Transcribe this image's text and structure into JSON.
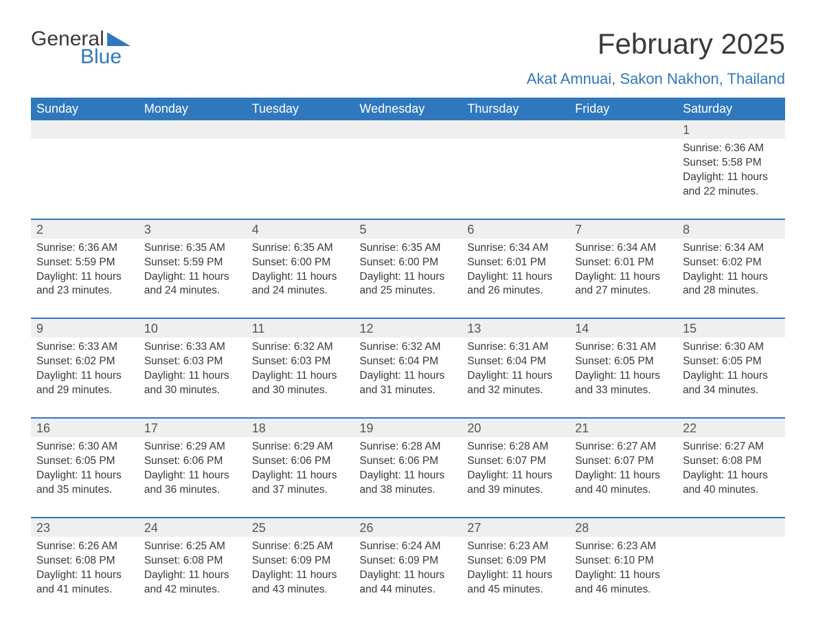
{
  "logo": {
    "text_general": "General",
    "text_blue": "Blue",
    "flag_color": "#2f78bd"
  },
  "title": "February 2025",
  "subtitle": "Akat Amnuai, Sakon Nakhon, Thailand",
  "colors": {
    "header_bg": "#2f78bd",
    "header_text": "#ffffff",
    "page_bg": "#ffffff",
    "daynum_bg": "#efefef",
    "text": "#333333",
    "accent": "#2f78bd"
  },
  "day_labels": [
    "Sunday",
    "Monday",
    "Tuesday",
    "Wednesday",
    "Thursday",
    "Friday",
    "Saturday"
  ],
  "weeks": [
    [
      null,
      null,
      null,
      null,
      null,
      null,
      {
        "n": "1",
        "sunrise": "6:36 AM",
        "sunset": "5:58 PM",
        "daylight": "11 hours and 22 minutes."
      }
    ],
    [
      {
        "n": "2",
        "sunrise": "6:36 AM",
        "sunset": "5:59 PM",
        "daylight": "11 hours and 23 minutes."
      },
      {
        "n": "3",
        "sunrise": "6:35 AM",
        "sunset": "5:59 PM",
        "daylight": "11 hours and 24 minutes."
      },
      {
        "n": "4",
        "sunrise": "6:35 AM",
        "sunset": "6:00 PM",
        "daylight": "11 hours and 24 minutes."
      },
      {
        "n": "5",
        "sunrise": "6:35 AM",
        "sunset": "6:00 PM",
        "daylight": "11 hours and 25 minutes."
      },
      {
        "n": "6",
        "sunrise": "6:34 AM",
        "sunset": "6:01 PM",
        "daylight": "11 hours and 26 minutes."
      },
      {
        "n": "7",
        "sunrise": "6:34 AM",
        "sunset": "6:01 PM",
        "daylight": "11 hours and 27 minutes."
      },
      {
        "n": "8",
        "sunrise": "6:34 AM",
        "sunset": "6:02 PM",
        "daylight": "11 hours and 28 minutes."
      }
    ],
    [
      {
        "n": "9",
        "sunrise": "6:33 AM",
        "sunset": "6:02 PM",
        "daylight": "11 hours and 29 minutes."
      },
      {
        "n": "10",
        "sunrise": "6:33 AM",
        "sunset": "6:03 PM",
        "daylight": "11 hours and 30 minutes."
      },
      {
        "n": "11",
        "sunrise": "6:32 AM",
        "sunset": "6:03 PM",
        "daylight": "11 hours and 30 minutes."
      },
      {
        "n": "12",
        "sunrise": "6:32 AM",
        "sunset": "6:04 PM",
        "daylight": "11 hours and 31 minutes."
      },
      {
        "n": "13",
        "sunrise": "6:31 AM",
        "sunset": "6:04 PM",
        "daylight": "11 hours and 32 minutes."
      },
      {
        "n": "14",
        "sunrise": "6:31 AM",
        "sunset": "6:05 PM",
        "daylight": "11 hours and 33 minutes."
      },
      {
        "n": "15",
        "sunrise": "6:30 AM",
        "sunset": "6:05 PM",
        "daylight": "11 hours and 34 minutes."
      }
    ],
    [
      {
        "n": "16",
        "sunrise": "6:30 AM",
        "sunset": "6:05 PM",
        "daylight": "11 hours and 35 minutes."
      },
      {
        "n": "17",
        "sunrise": "6:29 AM",
        "sunset": "6:06 PM",
        "daylight": "11 hours and 36 minutes."
      },
      {
        "n": "18",
        "sunrise": "6:29 AM",
        "sunset": "6:06 PM",
        "daylight": "11 hours and 37 minutes."
      },
      {
        "n": "19",
        "sunrise": "6:28 AM",
        "sunset": "6:06 PM",
        "daylight": "11 hours and 38 minutes."
      },
      {
        "n": "20",
        "sunrise": "6:28 AM",
        "sunset": "6:07 PM",
        "daylight": "11 hours and 39 minutes."
      },
      {
        "n": "21",
        "sunrise": "6:27 AM",
        "sunset": "6:07 PM",
        "daylight": "11 hours and 40 minutes."
      },
      {
        "n": "22",
        "sunrise": "6:27 AM",
        "sunset": "6:08 PM",
        "daylight": "11 hours and 40 minutes."
      }
    ],
    [
      {
        "n": "23",
        "sunrise": "6:26 AM",
        "sunset": "6:08 PM",
        "daylight": "11 hours and 41 minutes."
      },
      {
        "n": "24",
        "sunrise": "6:25 AM",
        "sunset": "6:08 PM",
        "daylight": "11 hours and 42 minutes."
      },
      {
        "n": "25",
        "sunrise": "6:25 AM",
        "sunset": "6:09 PM",
        "daylight": "11 hours and 43 minutes."
      },
      {
        "n": "26",
        "sunrise": "6:24 AM",
        "sunset": "6:09 PM",
        "daylight": "11 hours and 44 minutes."
      },
      {
        "n": "27",
        "sunrise": "6:23 AM",
        "sunset": "6:09 PM",
        "daylight": "11 hours and 45 minutes."
      },
      {
        "n": "28",
        "sunrise": "6:23 AM",
        "sunset": "6:10 PM",
        "daylight": "11 hours and 46 minutes."
      },
      null
    ]
  ],
  "labels": {
    "sunrise": "Sunrise: ",
    "sunset": "Sunset: ",
    "daylight": "Daylight: "
  }
}
